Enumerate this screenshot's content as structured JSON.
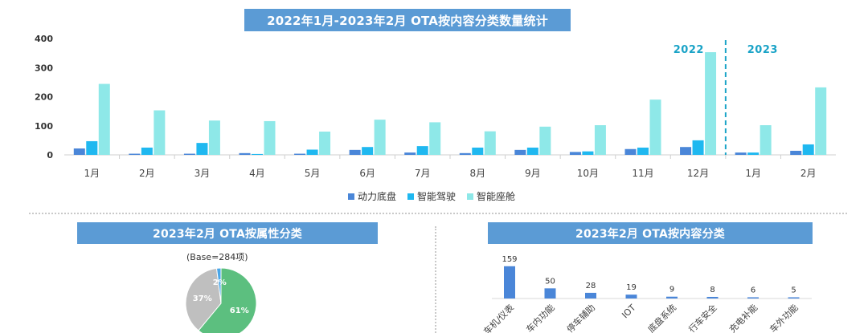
{
  "main_chart": {
    "title": "2022年1月-2023年2月 OTA按内容分类数量统计",
    "year_labels": [
      "2022",
      "2023"
    ]
  },
  "attr_section": {
    "title": "2023年2月 OTA按属性分类",
    "base_note": "(Base=284项)"
  },
  "content_section": {
    "title": "2023年2月 OTA按内容分类"
  },
  "colors": {
    "banner": "#5b9bd5",
    "powertrain": "#4a86d8",
    "adas": "#1fb8f0",
    "cockpit": "#8ee8e8",
    "divider": "#1aa3c7",
    "pie_green": "#5cbf7f",
    "pie_gray": "#bfbfbf",
    "pie_blue": "#4aa6e8"
  },
  "chart_data": [
    {
      "type": "bar",
      "title": "2022年1月-2023年2月 OTA按内容分类数量统计",
      "categories": [
        "1月",
        "2月",
        "3月",
        "4月",
        "5月",
        "6月",
        "7月",
        "8月",
        "9月",
        "10月",
        "11月",
        "12月",
        "1月",
        "2月"
      ],
      "series": [
        {
          "name": "动力底盘",
          "values": [
            22,
            4,
            4,
            6,
            4,
            17,
            8,
            6,
            17,
            10,
            20,
            27,
            8,
            14
          ]
        },
        {
          "name": "智能驾驶",
          "values": [
            47,
            25,
            41,
            3,
            18,
            27,
            30,
            25,
            25,
            12,
            25,
            50,
            8,
            36
          ]
        },
        {
          "name": "智能座舱",
          "values": [
            244,
            153,
            118,
            116,
            80,
            121,
            112,
            81,
            97,
            102,
            190,
            353,
            102,
            232
          ]
        }
      ],
      "yticks": [
        0,
        100,
        200,
        300,
        400
      ],
      "ylim": [
        0,
        400
      ],
      "xlabel": "",
      "ylabel": "",
      "legend_position": "bottom",
      "grid": false
    },
    {
      "type": "pie",
      "title": "2023年2月 OTA按属性分类",
      "slices": [
        {
          "label": "61%",
          "value": 61
        },
        {
          "label": "37%",
          "value": 37
        },
        {
          "label": "2%",
          "value": 2
        }
      ]
    },
    {
      "type": "bar",
      "title": "2023年2月 OTA按内容分类",
      "categories": [
        "车机/仪表",
        "车内功能",
        "停车辅助",
        "IOT",
        "底盘系统",
        "行车安全",
        "充电补能",
        "车外功能"
      ],
      "values": [
        159,
        50,
        28,
        19,
        9,
        8,
        6,
        5
      ],
      "ylim": [
        0,
        170
      ],
      "xlabel": "",
      "ylabel": ""
    }
  ]
}
